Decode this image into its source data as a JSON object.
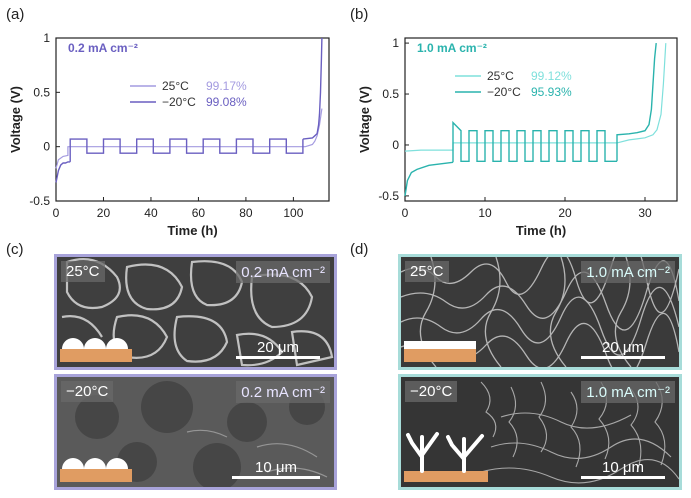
{
  "panels": {
    "a": {
      "letter": "(a)"
    },
    "b": {
      "letter": "(b)"
    },
    "c": {
      "letter": "(c)"
    },
    "d": {
      "letter": "(d)"
    }
  },
  "colors": {
    "purple": "#6a5fc1",
    "purple_light": "#a49be0",
    "teal": "#2ab3ad",
    "teal_light": "#7fe0dc",
    "border_purple": "#a8a3da",
    "border_teal": "#a7dcd9",
    "copper": "#e09c62"
  },
  "chart_data": [
    {
      "type": "line",
      "panel": "a",
      "title": "0.2 mA cm⁻²",
      "xlabel": "Time (h)",
      "ylabel": "Voltage (V)",
      "xlim": [
        0,
        115
      ],
      "ylim": [
        -0.5,
        1.0
      ],
      "xticks": [
        "0",
        "20",
        "40",
        "60",
        "80",
        "100"
      ],
      "yticks": [
        "1",
        "0.5",
        "0",
        "-0.5"
      ],
      "legend": [
        {
          "label": "25°C",
          "value": "99.17%"
        },
        {
          "label": "−20°C",
          "value": "99.08%"
        }
      ],
      "series": [
        {
          "name": "25°C",
          "x": [
            0,
            1,
            3,
            5,
            5,
            105,
            108,
            109,
            110,
            111,
            112
          ],
          "y": [
            -0.2,
            -0.12,
            -0.09,
            -0.08,
            0.0,
            0.0,
            0.02,
            0.05,
            0.1,
            0.2,
            0.35
          ]
        },
        {
          "name": "−20°C",
          "segments": [
            {
              "x": [
                0,
                1,
                2,
                3,
                4,
                5,
                6
              ],
              "y": [
                -0.33,
                -0.22,
                -0.17,
                -0.15,
                -0.15,
                -0.14,
                -0.14
              ]
            },
            {
              "x": [
                6,
                6,
                13,
                13,
                20,
                20,
                27,
                27,
                34,
                34,
                41,
                41,
                48,
                48,
                55,
                55,
                62,
                62,
                69,
                69,
                76,
                76,
                83,
                83,
                90,
                90,
                97,
                97,
                104,
                104
              ],
              "y": [
                -0.14,
                0.07,
                0.07,
                -0.06,
                -0.06,
                0.07,
                0.07,
                -0.06,
                -0.06,
                0.07,
                0.07,
                -0.06,
                -0.06,
                0.07,
                0.07,
                -0.06,
                -0.06,
                0.07,
                0.07,
                -0.06,
                -0.06,
                0.07,
                0.07,
                -0.06,
                -0.06,
                0.07,
                0.07,
                -0.06,
                -0.06,
                0.07
              ]
            },
            {
              "x": [
                104,
                108,
                109,
                110,
                110.6,
                111,
                111.4,
                111.8,
                112
              ],
              "y": [
                0.07,
                0.08,
                0.1,
                0.12,
                0.2,
                0.3,
                0.5,
                0.8,
                1.0
              ]
            }
          ]
        }
      ]
    },
    {
      "type": "line",
      "panel": "b",
      "title": "1.0 mA cm⁻²",
      "xlabel": "Time (h)",
      "ylabel": "Voltage (V)",
      "xlim": [
        0,
        34
      ],
      "ylim": [
        -0.55,
        1.05
      ],
      "xticks": [
        "0",
        "10",
        "20",
        "30"
      ],
      "yticks": [
        "1",
        "0.5",
        "0",
        "-0.5"
      ],
      "legend": [
        {
          "label": "25°C",
          "value": "99.12%"
        },
        {
          "label": "−20°C",
          "value": "95.93%"
        }
      ],
      "series": [
        {
          "name": "25°C",
          "x": [
            0,
            2,
            4,
            6,
            6,
            26.5,
            28,
            29,
            30,
            31,
            31.5,
            32,
            32.3,
            32.6
          ],
          "y": [
            -0.06,
            -0.05,
            -0.05,
            -0.05,
            0.02,
            0.02,
            0.05,
            0.06,
            0.07,
            0.1,
            0.15,
            0.3,
            0.6,
            1.0
          ]
        },
        {
          "name": "−20°C",
          "segments": [
            {
              "x": [
                0,
                0.3,
                0.8,
                1.5,
                3,
                5,
                6
              ],
              "y": [
                -0.5,
                -0.35,
                -0.27,
                -0.24,
                -0.2,
                -0.18,
                -0.17
              ]
            },
            {
              "x": [
                6,
                6,
                7,
                7,
                8,
                8,
                9,
                9,
                10,
                10,
                11,
                11,
                12,
                12,
                13,
                13,
                14,
                14,
                15,
                15,
                16,
                16,
                17,
                17,
                18,
                18,
                19,
                19,
                20,
                20,
                21,
                21,
                22,
                22,
                23,
                23,
                24,
                24,
                25,
                25,
                26.5
              ],
              "y": [
                -0.17,
                0.22,
                0.14,
                -0.16,
                -0.16,
                0.14,
                0.14,
                -0.16,
                -0.16,
                0.14,
                0.14,
                -0.16,
                -0.16,
                0.14,
                0.14,
                -0.16,
                -0.16,
                0.14,
                0.14,
                -0.16,
                -0.16,
                0.14,
                0.14,
                -0.16,
                -0.16,
                0.14,
                0.14,
                -0.16,
                -0.16,
                0.14,
                0.14,
                -0.16,
                -0.16,
                0.14,
                0.14,
                -0.16,
                -0.16,
                0.14,
                0.14,
                -0.16,
                -0.16
              ]
            },
            {
              "x": [
                26.5,
                26.5,
                28,
                29,
                30,
                30.5,
                30.8,
                31,
                31.2,
                31.4
              ],
              "y": [
                -0.16,
                0.1,
                0.11,
                0.12,
                0.14,
                0.2,
                0.35,
                0.6,
                0.85,
                1.0
              ]
            }
          ]
        }
      ]
    }
  ],
  "sem": {
    "c_top": {
      "temp": "25°C",
      "rate": "0.2 mA cm⁻²",
      "scale": "20 μm"
    },
    "c_bottom": {
      "temp": "−20°C",
      "rate": "0.2 mA cm⁻²",
      "scale": "10 μm"
    },
    "d_top": {
      "temp": "25°C",
      "rate": "1.0 mA cm⁻²",
      "scale": "20 μm"
    },
    "d_bottom": {
      "temp": "−20°C",
      "rate": "1.0 mA cm⁻²",
      "scale": "10 μm"
    }
  }
}
